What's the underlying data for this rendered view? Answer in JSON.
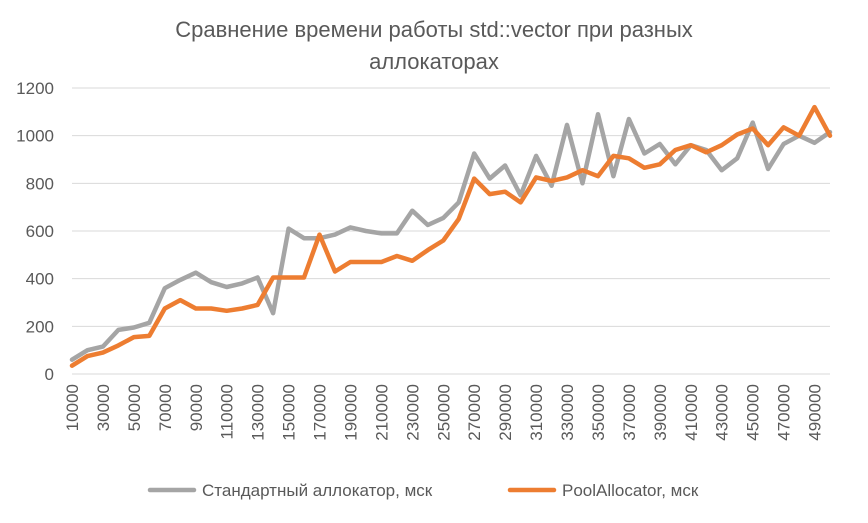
{
  "chart_data": {
    "type": "line",
    "title_lines": [
      "Сравнение времени работы std::vector при разных",
      "аллокаторах"
    ],
    "xlabel": "",
    "ylabel": "",
    "ylim": [
      0,
      1200
    ],
    "yticks": [
      0,
      200,
      400,
      600,
      800,
      1000,
      1200
    ],
    "x": [
      10000,
      20000,
      30000,
      40000,
      50000,
      60000,
      70000,
      80000,
      90000,
      100000,
      110000,
      120000,
      130000,
      140000,
      150000,
      160000,
      170000,
      180000,
      190000,
      200000,
      210000,
      220000,
      230000,
      240000,
      250000,
      260000,
      270000,
      280000,
      290000,
      300000,
      310000,
      320000,
      330000,
      340000,
      350000,
      360000,
      370000,
      380000,
      390000,
      400000,
      410000,
      420000,
      430000,
      440000,
      450000,
      460000,
      470000,
      480000,
      490000,
      500000
    ],
    "x_tick_labels": [
      "10000",
      "30000",
      "50000",
      "70000",
      "90000",
      "110000",
      "130000",
      "150000",
      "170000",
      "190000",
      "210000",
      "230000",
      "250000",
      "270000",
      "290000",
      "310000",
      "330000",
      "350000",
      "370000",
      "390000",
      "410000",
      "430000",
      "450000",
      "470000",
      "490000"
    ],
    "grid": true,
    "legend_position": "bottom",
    "series": [
      {
        "name": "Стандартный аллокатор, мск",
        "color": "#a5a5a5",
        "values": [
          60,
          100,
          115,
          185,
          195,
          215,
          360,
          395,
          425,
          385,
          365,
          380,
          405,
          255,
          610,
          570,
          570,
          585,
          615,
          600,
          590,
          590,
          685,
          625,
          655,
          720,
          925,
          820,
          875,
          750,
          915,
          790,
          1045,
          800,
          1090,
          830,
          1070,
          925,
          965,
          880,
          960,
          940,
          855,
          905,
          1055,
          860,
          965,
          1000,
          970,
          1015
        ]
      },
      {
        "name": "PoolAllocator, мск",
        "color": "#ed7d31",
        "values": [
          35,
          75,
          90,
          120,
          155,
          160,
          275,
          310,
          275,
          275,
          265,
          275,
          290,
          405,
          405,
          405,
          585,
          430,
          470,
          470,
          470,
          495,
          475,
          520,
          560,
          650,
          820,
          755,
          765,
          720,
          825,
          810,
          825,
          855,
          830,
          915,
          905,
          865,
          880,
          940,
          960,
          930,
          960,
          1005,
          1030,
          960,
          1035,
          1000,
          1120,
          1000
        ]
      }
    ]
  }
}
